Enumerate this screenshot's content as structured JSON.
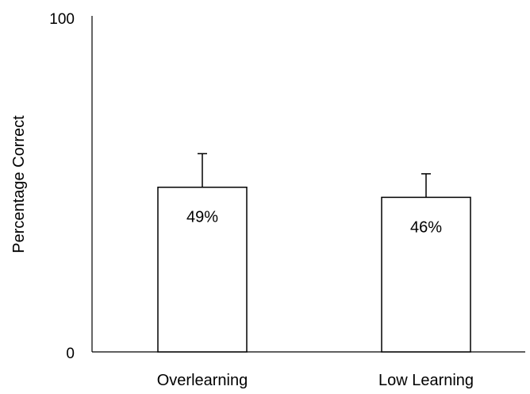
{
  "chart_data": {
    "type": "bar",
    "title": "",
    "xlabel": "",
    "ylabel": "Percentage Correct",
    "ylim": [
      0,
      100
    ],
    "yticks": [
      0,
      100
    ],
    "categories": [
      "Overlearning",
      "Low Learning"
    ],
    "values": [
      49,
      46
    ],
    "value_labels": [
      "49%",
      "46%"
    ],
    "error_upper": [
      59,
      53
    ],
    "grid": false,
    "legend": "none",
    "colors": {
      "bar_fill": "#ffffff",
      "bar_stroke": "#000000",
      "axis": "#000000"
    }
  }
}
